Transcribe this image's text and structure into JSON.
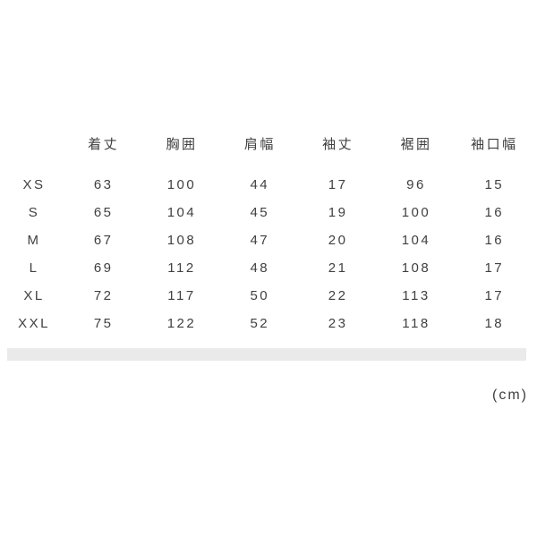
{
  "chart_data": {
    "type": "table",
    "title": "",
    "columns": [
      "着丈",
      "胸囲",
      "肩幅",
      "袖丈",
      "裾囲",
      "袖口幅"
    ],
    "row_labels": [
      "XS",
      "S",
      "M",
      "L",
      "XL",
      "XXL"
    ],
    "rows": [
      [
        63,
        100,
        44,
        17,
        96,
        15
      ],
      [
        65,
        104,
        45,
        19,
        100,
        16
      ],
      [
        67,
        108,
        47,
        20,
        104,
        16
      ],
      [
        69,
        112,
        48,
        21,
        108,
        17
      ],
      [
        72,
        117,
        50,
        22,
        113,
        17
      ],
      [
        75,
        122,
        52,
        23,
        118,
        18
      ]
    ],
    "unit_label": "(cm)",
    "layout": "size labels in first column, measurement columns centered, no gridlines, gray divider bar below table"
  },
  "colors": {
    "text": "#404040",
    "divider": "#eaeaea",
    "background": "#ffffff"
  }
}
